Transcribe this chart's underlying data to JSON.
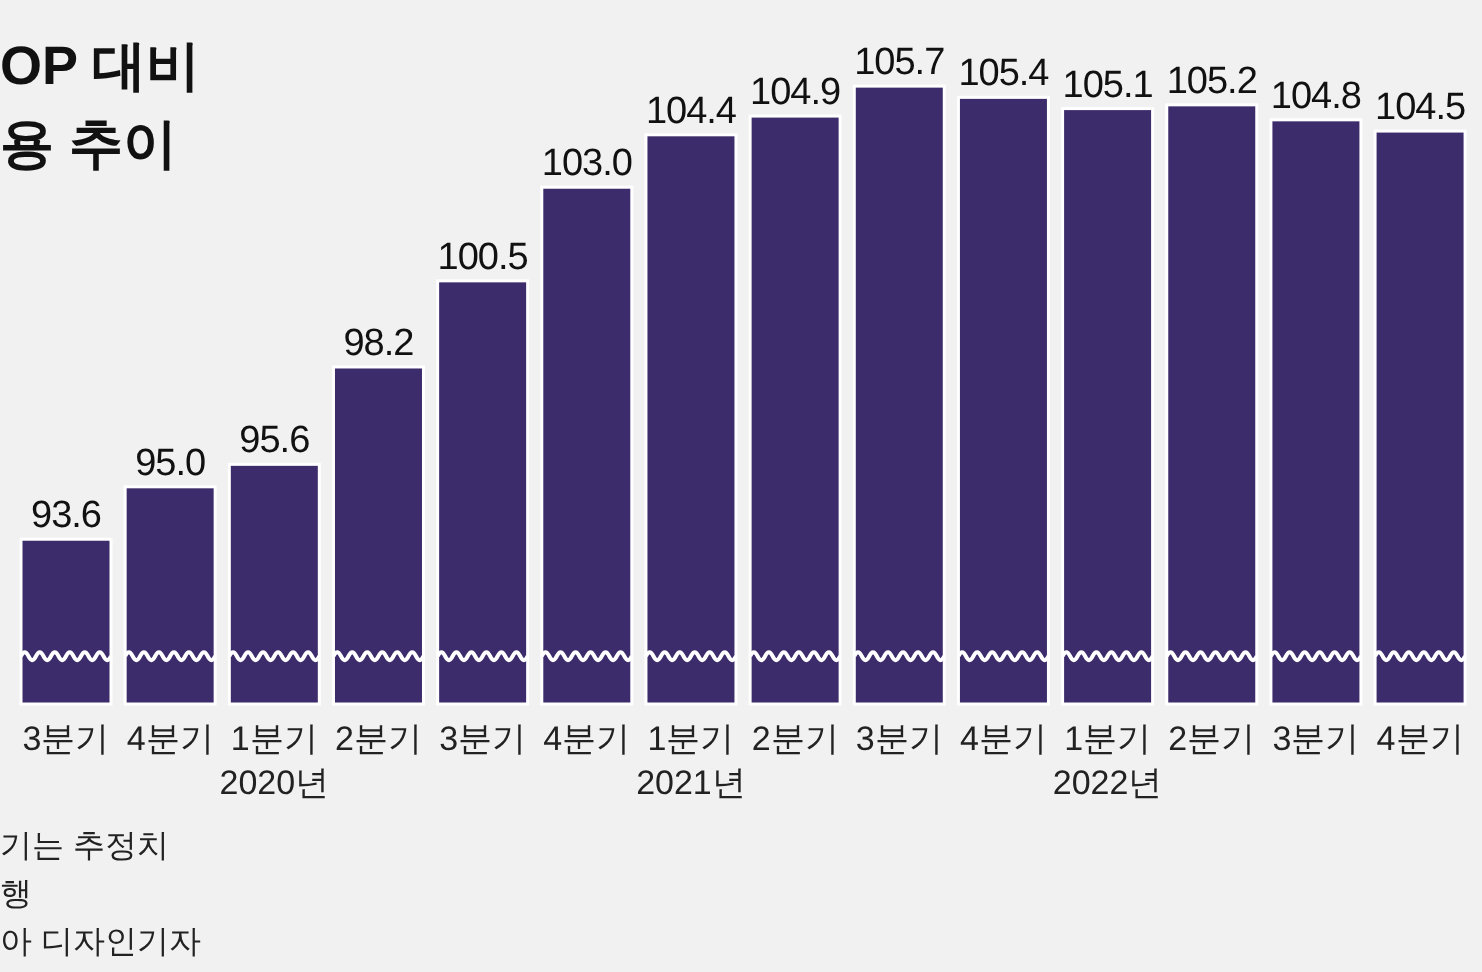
{
  "chart_data": {
    "type": "bar",
    "title": "OP 대비\n용 추이",
    "categories": [
      "3분기",
      "4분기",
      "1분기\n2020년",
      "2분기",
      "3분기",
      "4분기",
      "1분기\n2021년",
      "2분기",
      "3분기",
      "4분기",
      "1분기\n2022년",
      "2분기",
      "3분기",
      "4분기"
    ],
    "series": [
      {
        "color": "#3d2c6b",
        "values": [
          93.6,
          95.0,
          95.6,
          98.2,
          100.5,
          103.0,
          104.4,
          104.9,
          105.7,
          105.4,
          105.1,
          105.2,
          104.8,
          104.5
        ],
        "value_labels": [
          "93.6",
          "95.0",
          "95.6",
          "98.2",
          "100.5",
          "103.0",
          "104.4",
          "104.9",
          "105.7",
          "105.4",
          "105.1",
          "105.2",
          "104.8",
          "104.5"
        ]
      }
    ],
    "ylim": [
      89.2,
      108.0
    ],
    "tick_labels": "x",
    "annotations": [
      "기는 추정치",
      "행",
      "아 디자인기자"
    ]
  }
}
